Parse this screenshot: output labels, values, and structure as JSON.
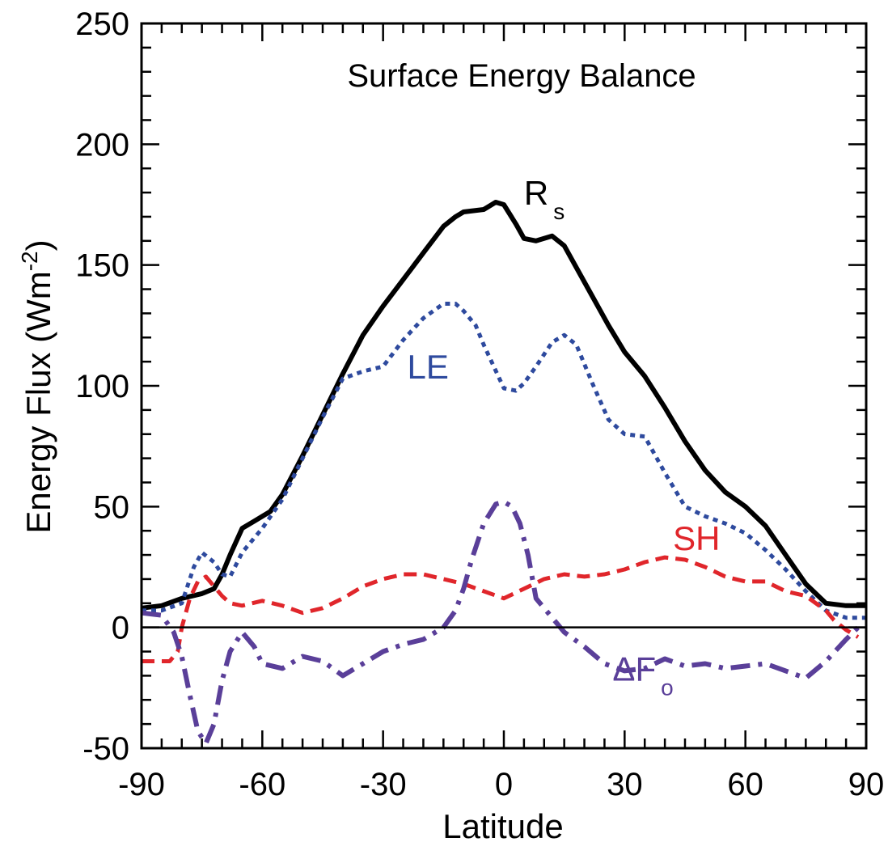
{
  "chart_data": {
    "type": "line",
    "title": "Surface Energy Balance",
    "xlabel": "Latitude",
    "ylabel": "Energy Flux (Wm",
    "ylabel_sup": "-2",
    "ylabel_close": ")",
    "xlim": [
      -90,
      90
    ],
    "ylim": [
      -50,
      250
    ],
    "x_ticks": [
      -90,
      -60,
      -30,
      0,
      30,
      60,
      90
    ],
    "y_ticks": [
      -50,
      0,
      50,
      100,
      150,
      200,
      250
    ],
    "grid": false,
    "zero_line": true,
    "series": [
      {
        "name": "R",
        "name_sub": "s",
        "color": "#000000",
        "style": "solid",
        "label_at": [
          5,
          175
        ],
        "x": [
          -90,
          -85,
          -80,
          -75,
          -72,
          -70,
          -68,
          -65,
          -62,
          -58,
          -55,
          -50,
          -45,
          -40,
          -35,
          -30,
          -25,
          -20,
          -15,
          -12,
          -10,
          -5,
          -2,
          0,
          3,
          5,
          8,
          12,
          15,
          18,
          22,
          26,
          30,
          35,
          40,
          45,
          50,
          55,
          60,
          65,
          70,
          75,
          80,
          85,
          90
        ],
        "values": [
          8,
          9,
          12,
          14,
          16,
          22,
          30,
          41,
          44,
          48,
          55,
          71,
          88,
          105,
          121,
          133,
          144,
          155,
          166,
          170,
          172,
          173,
          176,
          175,
          167,
          161,
          160,
          162,
          158,
          149,
          137,
          125,
          114,
          104,
          91,
          77,
          65,
          56,
          50,
          42,
          30,
          18,
          10,
          9,
          9
        ]
      },
      {
        "name": "LE",
        "color": "#2e4a9e",
        "style": "dotted",
        "label_at": [
          -24,
          103
        ],
        "x": [
          -90,
          -85,
          -80,
          -77,
          -75,
          -72,
          -70,
          -68,
          -65,
          -60,
          -55,
          -50,
          -45,
          -40,
          -35,
          -30,
          -25,
          -20,
          -15,
          -12,
          -10,
          -7,
          -5,
          0,
          3,
          5,
          8,
          12,
          15,
          18,
          22,
          26,
          30,
          35,
          40,
          45,
          50,
          55,
          60,
          65,
          70,
          75,
          80,
          85,
          90
        ],
        "values": [
          7,
          7,
          10,
          25,
          31,
          27,
          22,
          21,
          31,
          41,
          53,
          70,
          87,
          103,
          106,
          108,
          119,
          128,
          134,
          134,
          131,
          125,
          117,
          99,
          98,
          101,
          108,
          118,
          121,
          117,
          101,
          86,
          80,
          79,
          64,
          50,
          46,
          43,
          39,
          32,
          24,
          15,
          7,
          4,
          4
        ]
      },
      {
        "name": "SH",
        "color": "#e0262b",
        "style": "dashed",
        "label_at": [
          42,
          32
        ],
        "x": [
          -90,
          -83,
          -81,
          -80,
          -78,
          -76,
          -74,
          -72,
          -70,
          -68,
          -65,
          -60,
          -55,
          -50,
          -45,
          -40,
          -35,
          -30,
          -25,
          -20,
          -15,
          -10,
          -5,
          0,
          5,
          10,
          15,
          20,
          25,
          30,
          35,
          40,
          45,
          50,
          55,
          60,
          65,
          70,
          75,
          80,
          82,
          85,
          88
        ],
        "values": [
          -14,
          -14,
          -10,
          0,
          12,
          19,
          21,
          17,
          13,
          10,
          9,
          11,
          9,
          6,
          8,
          12,
          17,
          20,
          22,
          22,
          20,
          18,
          15,
          12,
          16,
          20,
          22,
          21,
          22,
          24,
          27,
          29,
          28,
          25,
          21,
          19,
          19,
          15,
          13,
          7,
          3,
          -1,
          -4
        ]
      },
      {
        "name": "ΔF",
        "name_sub": "o",
        "color": "#5a3f99",
        "style": "dashdot",
        "label_at": [
          27,
          -22
        ],
        "x": [
          -90,
          -85,
          -82,
          -80,
          -78,
          -76,
          -74,
          -72,
          -70,
          -68,
          -65,
          -62,
          -60,
          -55,
          -50,
          -45,
          -40,
          -35,
          -30,
          -25,
          -20,
          -15,
          -12,
          -10,
          -8,
          -5,
          -2,
          0,
          2,
          4,
          6,
          8,
          10,
          15,
          20,
          25,
          30,
          35,
          40,
          45,
          50,
          55,
          60,
          65,
          70,
          75,
          80,
          85,
          88
        ],
        "values": [
          6,
          5,
          -2,
          -12,
          -28,
          -43,
          -48,
          -40,
          -22,
          -10,
          -2,
          -8,
          -15,
          -17,
          -12,
          -14,
          -20,
          -15,
          -10,
          -7,
          -5,
          0,
          7,
          16,
          28,
          43,
          51,
          52,
          50,
          43,
          30,
          12,
          8,
          -2,
          -8,
          -15,
          -18,
          -17,
          -13,
          -16,
          -15,
          -17,
          -16,
          -15,
          -18,
          -21,
          -14,
          -5,
          0
        ]
      }
    ]
  }
}
